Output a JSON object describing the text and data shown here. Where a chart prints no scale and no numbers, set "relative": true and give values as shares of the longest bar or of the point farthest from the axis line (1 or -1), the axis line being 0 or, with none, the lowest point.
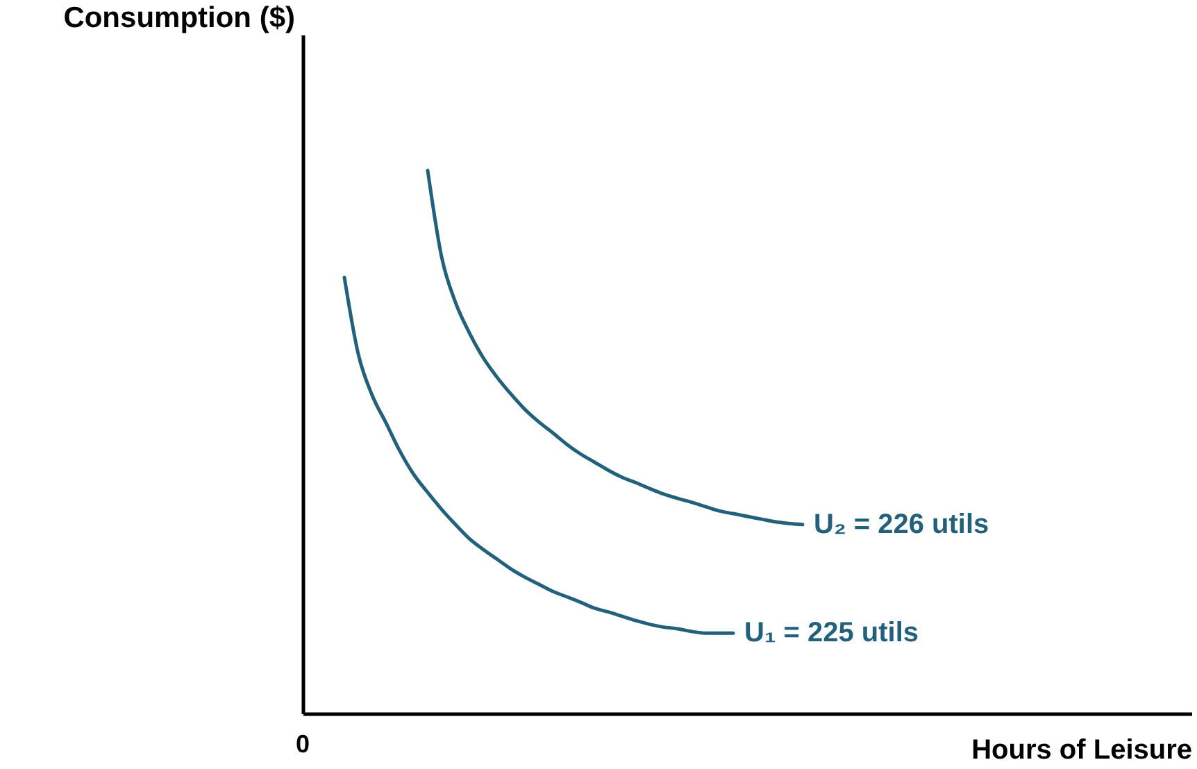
{
  "chart_data": {
    "type": "line",
    "relative": true,
    "xlabel": "Hours of Leisure",
    "ylabel": "Consumption ($)",
    "annotations": [
      "0"
    ],
    "categories": [
      null,
      null,
      null,
      null,
      null,
      null,
      null,
      null,
      null,
      null,
      null,
      null,
      null,
      null,
      null,
      null,
      null,
      null,
      null,
      null,
      null,
      null,
      null,
      null,
      null,
      null,
      null,
      null,
      null,
      null,
      null,
      null,
      null,
      null,
      null,
      null,
      null,
      null,
      null,
      null,
      null,
      null,
      null,
      null,
      null,
      null,
      null,
      null,
      null,
      null,
      null,
      null,
      null,
      null,
      null,
      null,
      null,
      null,
      null,
      null,
      null,
      null,
      null,
      null,
      null
    ],
    "series": [
      {
        "name": "U₁ = 225 utils",
        "color": "#22607c",
        "values": [
          null,
          null,
          null,
          0.803,
          0.662,
          0.586,
          0.535,
          0.483,
          0.44,
          0.407,
          0.376,
          0.348,
          0.322,
          0.302,
          0.284,
          0.266,
          0.251,
          0.238,
          0.225,
          0.215,
          0.205,
          0.194,
          0.187,
          0.179,
          0.171,
          0.164,
          0.159,
          0.156,
          0.151,
          0.148,
          0.148,
          0.148,
          null,
          null,
          null,
          null,
          null,
          null,
          null,
          null,
          null,
          null,
          null,
          null,
          null,
          null,
          null,
          null,
          null,
          null,
          null,
          null,
          null,
          null,
          null,
          null,
          null,
          null,
          null,
          null,
          null,
          null,
          null,
          null,
          null
        ]
      },
      {
        "name": "U₂ = 226 utils",
        "color": "#22607c",
        "values": [
          null,
          null,
          null,
          null,
          null,
          null,
          null,
          null,
          null,
          1.0,
          0.841,
          0.757,
          0.701,
          0.655,
          0.619,
          0.588,
          0.56,
          0.537,
          0.517,
          0.496,
          0.478,
          0.463,
          0.448,
          0.435,
          0.425,
          0.414,
          0.404,
          0.396,
          0.389,
          0.381,
          0.373,
          0.368,
          0.363,
          0.358,
          0.353,
          0.35,
          0.348,
          null,
          null,
          null,
          null,
          null,
          null,
          null,
          null,
          null,
          null,
          null,
          null,
          null,
          null,
          null,
          null,
          null,
          null,
          null,
          null,
          null,
          null,
          null,
          null,
          null,
          null,
          null,
          null
        ]
      }
    ]
  }
}
